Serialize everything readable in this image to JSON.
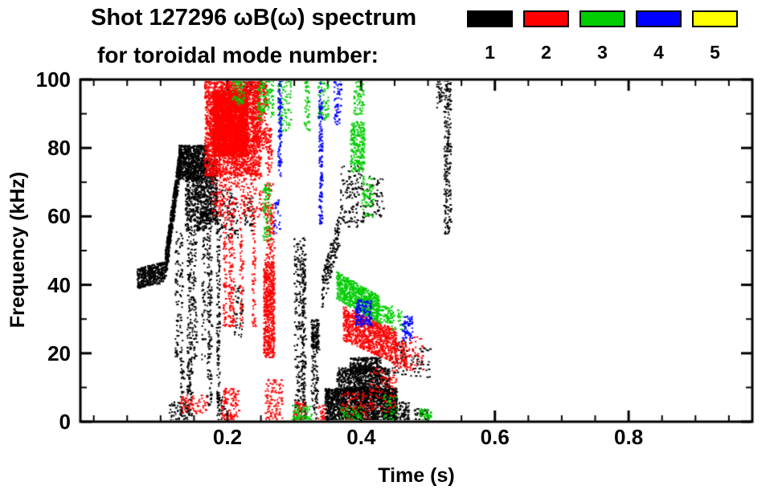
{
  "header": {
    "title": "Shot 127296 ωB(ω) spectrum",
    "subtitle": "for toroidal mode number:"
  },
  "legend": {
    "items": [
      {
        "label": "1",
        "color": "#000000"
      },
      {
        "label": "2",
        "color": "#ff0000"
      },
      {
        "label": "3",
        "color": "#00cc00"
      },
      {
        "label": "4",
        "color": "#0000ff"
      },
      {
        "label": "5",
        "color": "#ffff00"
      }
    ]
  },
  "chart_data": {
    "type": "scatter",
    "title": "Shot 127296 ωB(ω) spectrum for toroidal mode number 1-5",
    "xlabel": "Time (s)",
    "ylabel": "Frequency (kHz)",
    "xlim": [
      -0.02,
      0.985
    ],
    "ylim": [
      0,
      100
    ],
    "x_ticks": [
      {
        "value": 0.2,
        "label": "0.2"
      },
      {
        "value": 0.4,
        "label": "0.4"
      },
      {
        "value": 0.6,
        "label": "0.6"
      },
      {
        "value": 0.8,
        "label": "0.8"
      }
    ],
    "y_ticks": [
      {
        "value": 0,
        "label": "0"
      },
      {
        "value": 20,
        "label": "20"
      },
      {
        "value": 40,
        "label": "40"
      },
      {
        "value": 60,
        "label": "60"
      },
      {
        "value": 80,
        "label": "80"
      },
      {
        "value": 100,
        "label": "100"
      }
    ],
    "x_minor_step": 0.05,
    "y_minor_step": 10,
    "grid": false,
    "legend_position": "top-right",
    "series": [
      {
        "name": "n=1",
        "color": "#000000",
        "clusters": [
          {
            "kind": "ramp",
            "t": [
              0.064,
              0.106
            ],
            "f": [
              42,
              44
            ],
            "w": 3,
            "n": 400
          },
          {
            "kind": "ramp",
            "t": [
              0.106,
              0.128
            ],
            "f": [
              46,
              77
            ],
            "w": 4,
            "n": 550
          },
          {
            "kind": "band",
            "t": [
              0.126,
              0.168
            ],
            "f": [
              71,
              81
            ],
            "n": 700
          },
          {
            "kind": "band",
            "t": [
              0.136,
              0.168
            ],
            "f": [
              56,
              72
            ],
            "n": 450
          },
          {
            "kind": "streaks",
            "t": [
              0.122,
              0.175
            ],
            "f": [
              18,
              56
            ],
            "lines": 6,
            "n": 320
          },
          {
            "kind": "streaks",
            "t": [
              0.126,
              0.15
            ],
            "f": [
              2,
              18
            ],
            "lines": 3,
            "n": 100
          },
          {
            "kind": "streaks",
            "t": [
              0.168,
              0.186
            ],
            "f": [
              5,
              60
            ],
            "lines": 4,
            "n": 280
          },
          {
            "kind": "band",
            "t": [
              0.166,
              0.184
            ],
            "f": [
              58,
              77
            ],
            "n": 300
          },
          {
            "kind": "band",
            "t": [
              0.112,
              0.14
            ],
            "f": [
              0,
              6
            ],
            "n": 70
          },
          {
            "kind": "band",
            "t": [
              0.182,
              0.196
            ],
            "f": [
              0,
              8
            ],
            "n": 45
          },
          {
            "kind": "band",
            "t": [
              0.188,
              0.215
            ],
            "f": [
              54,
              68
            ],
            "n": 90
          },
          {
            "kind": "band",
            "t": [
              0.208,
              0.222
            ],
            "f": [
              25,
              40
            ],
            "n": 50
          },
          {
            "kind": "band",
            "t": [
              0.222,
              0.238
            ],
            "f": [
              56,
              66
            ],
            "n": 40
          },
          {
            "kind": "band",
            "t": [
              0.222,
              0.235
            ],
            "f": [
              96,
              100
            ],
            "n": 40
          },
          {
            "kind": "streaks",
            "t": [
              0.292,
              0.318
            ],
            "f": [
              0,
              54
            ],
            "lines": 5,
            "n": 360
          },
          {
            "kind": "streaks",
            "t": [
              0.322,
              0.338
            ],
            "f": [
              0,
              30
            ],
            "lines": 2,
            "n": 120
          },
          {
            "kind": "band",
            "t": [
              0.324,
              0.336
            ],
            "f": [
              21,
              30
            ],
            "n": 90
          },
          {
            "kind": "band",
            "t": [
              0.345,
              0.452
            ],
            "f": [
              0,
              10
            ],
            "n": 1600
          },
          {
            "kind": "band",
            "t": [
              0.362,
              0.442
            ],
            "f": [
              8,
              16
            ],
            "n": 700
          },
          {
            "kind": "band",
            "t": [
              0.382,
              0.428
            ],
            "f": [
              14,
              19
            ],
            "n": 260
          },
          {
            "kind": "ramp",
            "t": [
              0.34,
              0.366
            ],
            "f": [
              38,
              56
            ],
            "w": 5,
            "n": 160
          },
          {
            "kind": "band",
            "t": [
              0.368,
              0.402
            ],
            "f": [
              57,
              75
            ],
            "n": 130
          },
          {
            "kind": "band",
            "t": [
              0.402,
              0.432
            ],
            "f": [
              60,
              72
            ],
            "n": 60
          },
          {
            "kind": "band",
            "t": [
              0.438,
              0.47
            ],
            "f": [
              0,
              6
            ],
            "n": 120
          },
          {
            "kind": "band",
            "t": [
              0.444,
              0.468
            ],
            "f": [
              14,
              24
            ],
            "n": 55
          },
          {
            "kind": "band",
            "t": [
              0.472,
              0.502
            ],
            "f": [
              13,
              22
            ],
            "n": 45
          },
          {
            "kind": "band",
            "t": [
              0.478,
              0.5
            ],
            "f": [
              0,
              4
            ],
            "n": 40
          },
          {
            "kind": "streaks",
            "t": [
              0.515,
              0.534
            ],
            "f": [
              55,
              100
            ],
            "lines": 2,
            "n": 210
          },
          {
            "kind": "band",
            "t": [
              0.512,
              0.52
            ],
            "f": [
              92,
              100
            ],
            "n": 30
          }
        ]
      },
      {
        "name": "n=2",
        "color": "#ff0000",
        "clusters": [
          {
            "kind": "band",
            "t": [
              0.165,
              0.248
            ],
            "f": [
              72,
              100
            ],
            "n": 2300
          },
          {
            "kind": "band",
            "t": [
              0.176,
              0.228
            ],
            "f": [
              78,
              97
            ],
            "n": 1200,
            "s": 3
          },
          {
            "kind": "band",
            "t": [
              0.235,
              0.258
            ],
            "f": [
              80,
              100
            ],
            "n": 280
          },
          {
            "kind": "band",
            "t": [
              0.175,
              0.252
            ],
            "f": [
              60,
              73
            ],
            "n": 260
          },
          {
            "kind": "streaks",
            "t": [
              0.19,
              0.252
            ],
            "f": [
              28,
              60
            ],
            "lines": 5,
            "n": 300
          },
          {
            "kind": "band",
            "t": [
              0.253,
              0.269
            ],
            "f": [
              19,
              47
            ],
            "n": 550
          },
          {
            "kind": "band",
            "t": [
              0.255,
              0.269
            ],
            "f": [
              47,
              70
            ],
            "n": 130
          },
          {
            "kind": "band",
            "t": [
              0.256,
              0.266
            ],
            "f": [
              72,
              86
            ],
            "n": 60
          },
          {
            "kind": "band",
            "t": [
              0.128,
              0.168
            ],
            "f": [
              2,
              8
            ],
            "n": 70
          },
          {
            "kind": "band",
            "t": [
              0.19,
              0.216
            ],
            "f": [
              0,
              10
            ],
            "n": 110
          },
          {
            "kind": "band",
            "t": [
              0.255,
              0.282
            ],
            "f": [
              0,
              13
            ],
            "n": 110
          },
          {
            "kind": "band",
            "t": [
              0.298,
              0.316
            ],
            "f": [
              0,
              6
            ],
            "n": 50
          },
          {
            "kind": "ramp",
            "t": [
              0.372,
              0.452
            ],
            "f": [
              29,
              22
            ],
            "w": 5,
            "n": 850
          },
          {
            "kind": "band",
            "t": [
              0.448,
              0.468
            ],
            "f": [
              16,
              24
            ],
            "n": 70
          },
          {
            "kind": "band",
            "t": [
              0.368,
              0.412
            ],
            "f": [
              0,
              9
            ],
            "n": 90
          },
          {
            "kind": "band",
            "t": [
              0.412,
              0.452
            ],
            "f": [
              3,
              16
            ],
            "n": 100
          },
          {
            "kind": "band",
            "t": [
              0.46,
              0.492
            ],
            "f": [
              15,
              25
            ],
            "n": 55
          },
          {
            "kind": "band",
            "t": [
              0.335,
              0.345
            ],
            "f": [
              0,
              5
            ],
            "n": 30
          }
        ]
      },
      {
        "name": "n=3",
        "color": "#00cc00",
        "clusters": [
          {
            "kind": "band",
            "t": [
              0.205,
              0.225
            ],
            "f": [
              93,
              100
            ],
            "n": 60
          },
          {
            "kind": "band",
            "t": [
              0.244,
              0.268
            ],
            "f": [
              88,
              100
            ],
            "n": 110
          },
          {
            "kind": "band",
            "t": [
              0.274,
              0.294
            ],
            "f": [
              85,
              100
            ],
            "n": 80
          },
          {
            "kind": "streaks",
            "t": [
              0.305,
              0.32
            ],
            "f": [
              85,
              100
            ],
            "lines": 2,
            "n": 50
          },
          {
            "kind": "band",
            "t": [
              0.334,
              0.35
            ],
            "f": [
              88,
              100
            ],
            "n": 70
          },
          {
            "kind": "band",
            "t": [
              0.252,
              0.263
            ],
            "f": [
              53,
              70
            ],
            "n": 80
          },
          {
            "kind": "ramp",
            "t": [
              0.362,
              0.426
            ],
            "f": [
              40,
              33
            ],
            "w": 4,
            "n": 650
          },
          {
            "kind": "band",
            "t": [
              0.426,
              0.446
            ],
            "f": [
              29,
              34
            ],
            "n": 70
          },
          {
            "kind": "band",
            "t": [
              0.383,
              0.404
            ],
            "f": [
              73,
              88
            ],
            "n": 220
          },
          {
            "kind": "band",
            "t": [
              0.4,
              0.417
            ],
            "f": [
              60,
              72
            ],
            "n": 70
          },
          {
            "kind": "band",
            "t": [
              0.388,
              0.402
            ],
            "f": [
              90,
              100
            ],
            "n": 60
          },
          {
            "kind": "band",
            "t": [
              0.295,
              0.325
            ],
            "f": [
              0,
              5
            ],
            "n": 70
          },
          {
            "kind": "band",
            "t": [
              0.368,
              0.402
            ],
            "f": [
              0,
              5
            ],
            "n": 50
          },
          {
            "kind": "band",
            "t": [
              0.486,
              0.504
            ],
            "f": [
              0,
              4
            ],
            "n": 45
          },
          {
            "kind": "band",
            "t": [
              0.432,
              0.452
            ],
            "f": [
              0,
              8
            ],
            "n": 35
          },
          {
            "kind": "band",
            "t": [
              0.444,
              0.464
            ],
            "f": [
              27,
              33
            ],
            "n": 30
          }
        ]
      },
      {
        "name": "n=4",
        "color": "#0000ff",
        "clusters": [
          {
            "kind": "streaks",
            "t": [
              0.271,
              0.281
            ],
            "f": [
              72,
              100
            ],
            "lines": 1,
            "n": 90
          },
          {
            "kind": "streaks",
            "t": [
              0.328,
              0.346
            ],
            "f": [
              58,
              100
            ],
            "lines": 2,
            "n": 140
          },
          {
            "kind": "band",
            "t": [
              0.358,
              0.37
            ],
            "f": [
              87,
              100
            ],
            "n": 60
          },
          {
            "kind": "band",
            "t": [
              0.39,
              0.415
            ],
            "f": [
              28,
              36
            ],
            "n": 130
          },
          {
            "kind": "band",
            "t": [
              0.46,
              0.476
            ],
            "f": [
              24,
              31
            ],
            "n": 70
          },
          {
            "kind": "band",
            "t": [
              0.268,
              0.278
            ],
            "f": [
              55,
              65
            ],
            "n": 25
          }
        ]
      },
      {
        "name": "n=5",
        "color": "#ffff00",
        "clusters": []
      }
    ]
  }
}
